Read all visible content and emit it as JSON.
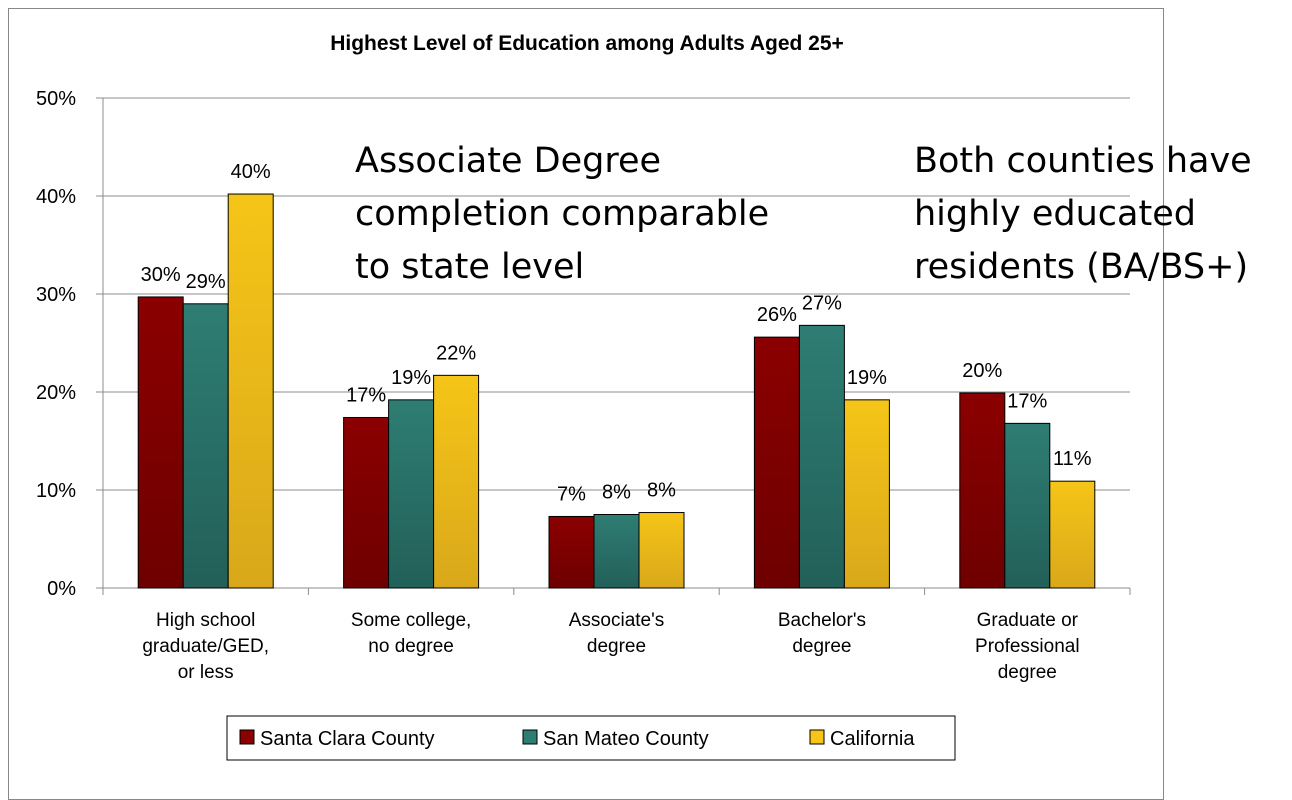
{
  "chart_data": {
    "type": "bar",
    "title": "Highest Level of Education among Adults Aged 25+",
    "categories": [
      [
        "High school",
        "graduate/GED,",
        "or less"
      ],
      [
        "Some college,",
        "no degree"
      ],
      [
        "Associate's",
        "degree"
      ],
      [
        "Bachelor's",
        "degree"
      ],
      [
        "Graduate or",
        "Professional",
        "degree"
      ]
    ],
    "series": [
      {
        "name": "Santa Clara County",
        "color": "#8B0000",
        "values": [
          29.7,
          17.4,
          7.3,
          25.6,
          19.9
        ],
        "labels": [
          "30%",
          "17%",
          "7%",
          "26%",
          "20%"
        ]
      },
      {
        "name": "San Mateo County",
        "color": "#2E7D73",
        "values": [
          29.0,
          19.2,
          7.5,
          26.8,
          16.8
        ],
        "labels": [
          "29%",
          "19%",
          "8%",
          "27%",
          "17%"
        ]
      },
      {
        "name": "California",
        "color": "#F5C518",
        "values": [
          40.2,
          21.7,
          7.7,
          19.2,
          10.9
        ],
        "labels": [
          "40%",
          "22%",
          "8%",
          "19%",
          "11%"
        ]
      }
    ],
    "ylim": [
      0,
      50
    ],
    "yticks": [
      "0%",
      "10%",
      "20%",
      "30%",
      "40%",
      "50%"
    ],
    "grid": true,
    "legend": "bottom",
    "annotations": [
      {
        "lines": [
          "Associate Degree",
          "completion comparable",
          "to state level"
        ]
      },
      {
        "lines": [
          "Both counties have",
          "highly educated",
          "residents (BA/BS+)"
        ]
      }
    ]
  }
}
